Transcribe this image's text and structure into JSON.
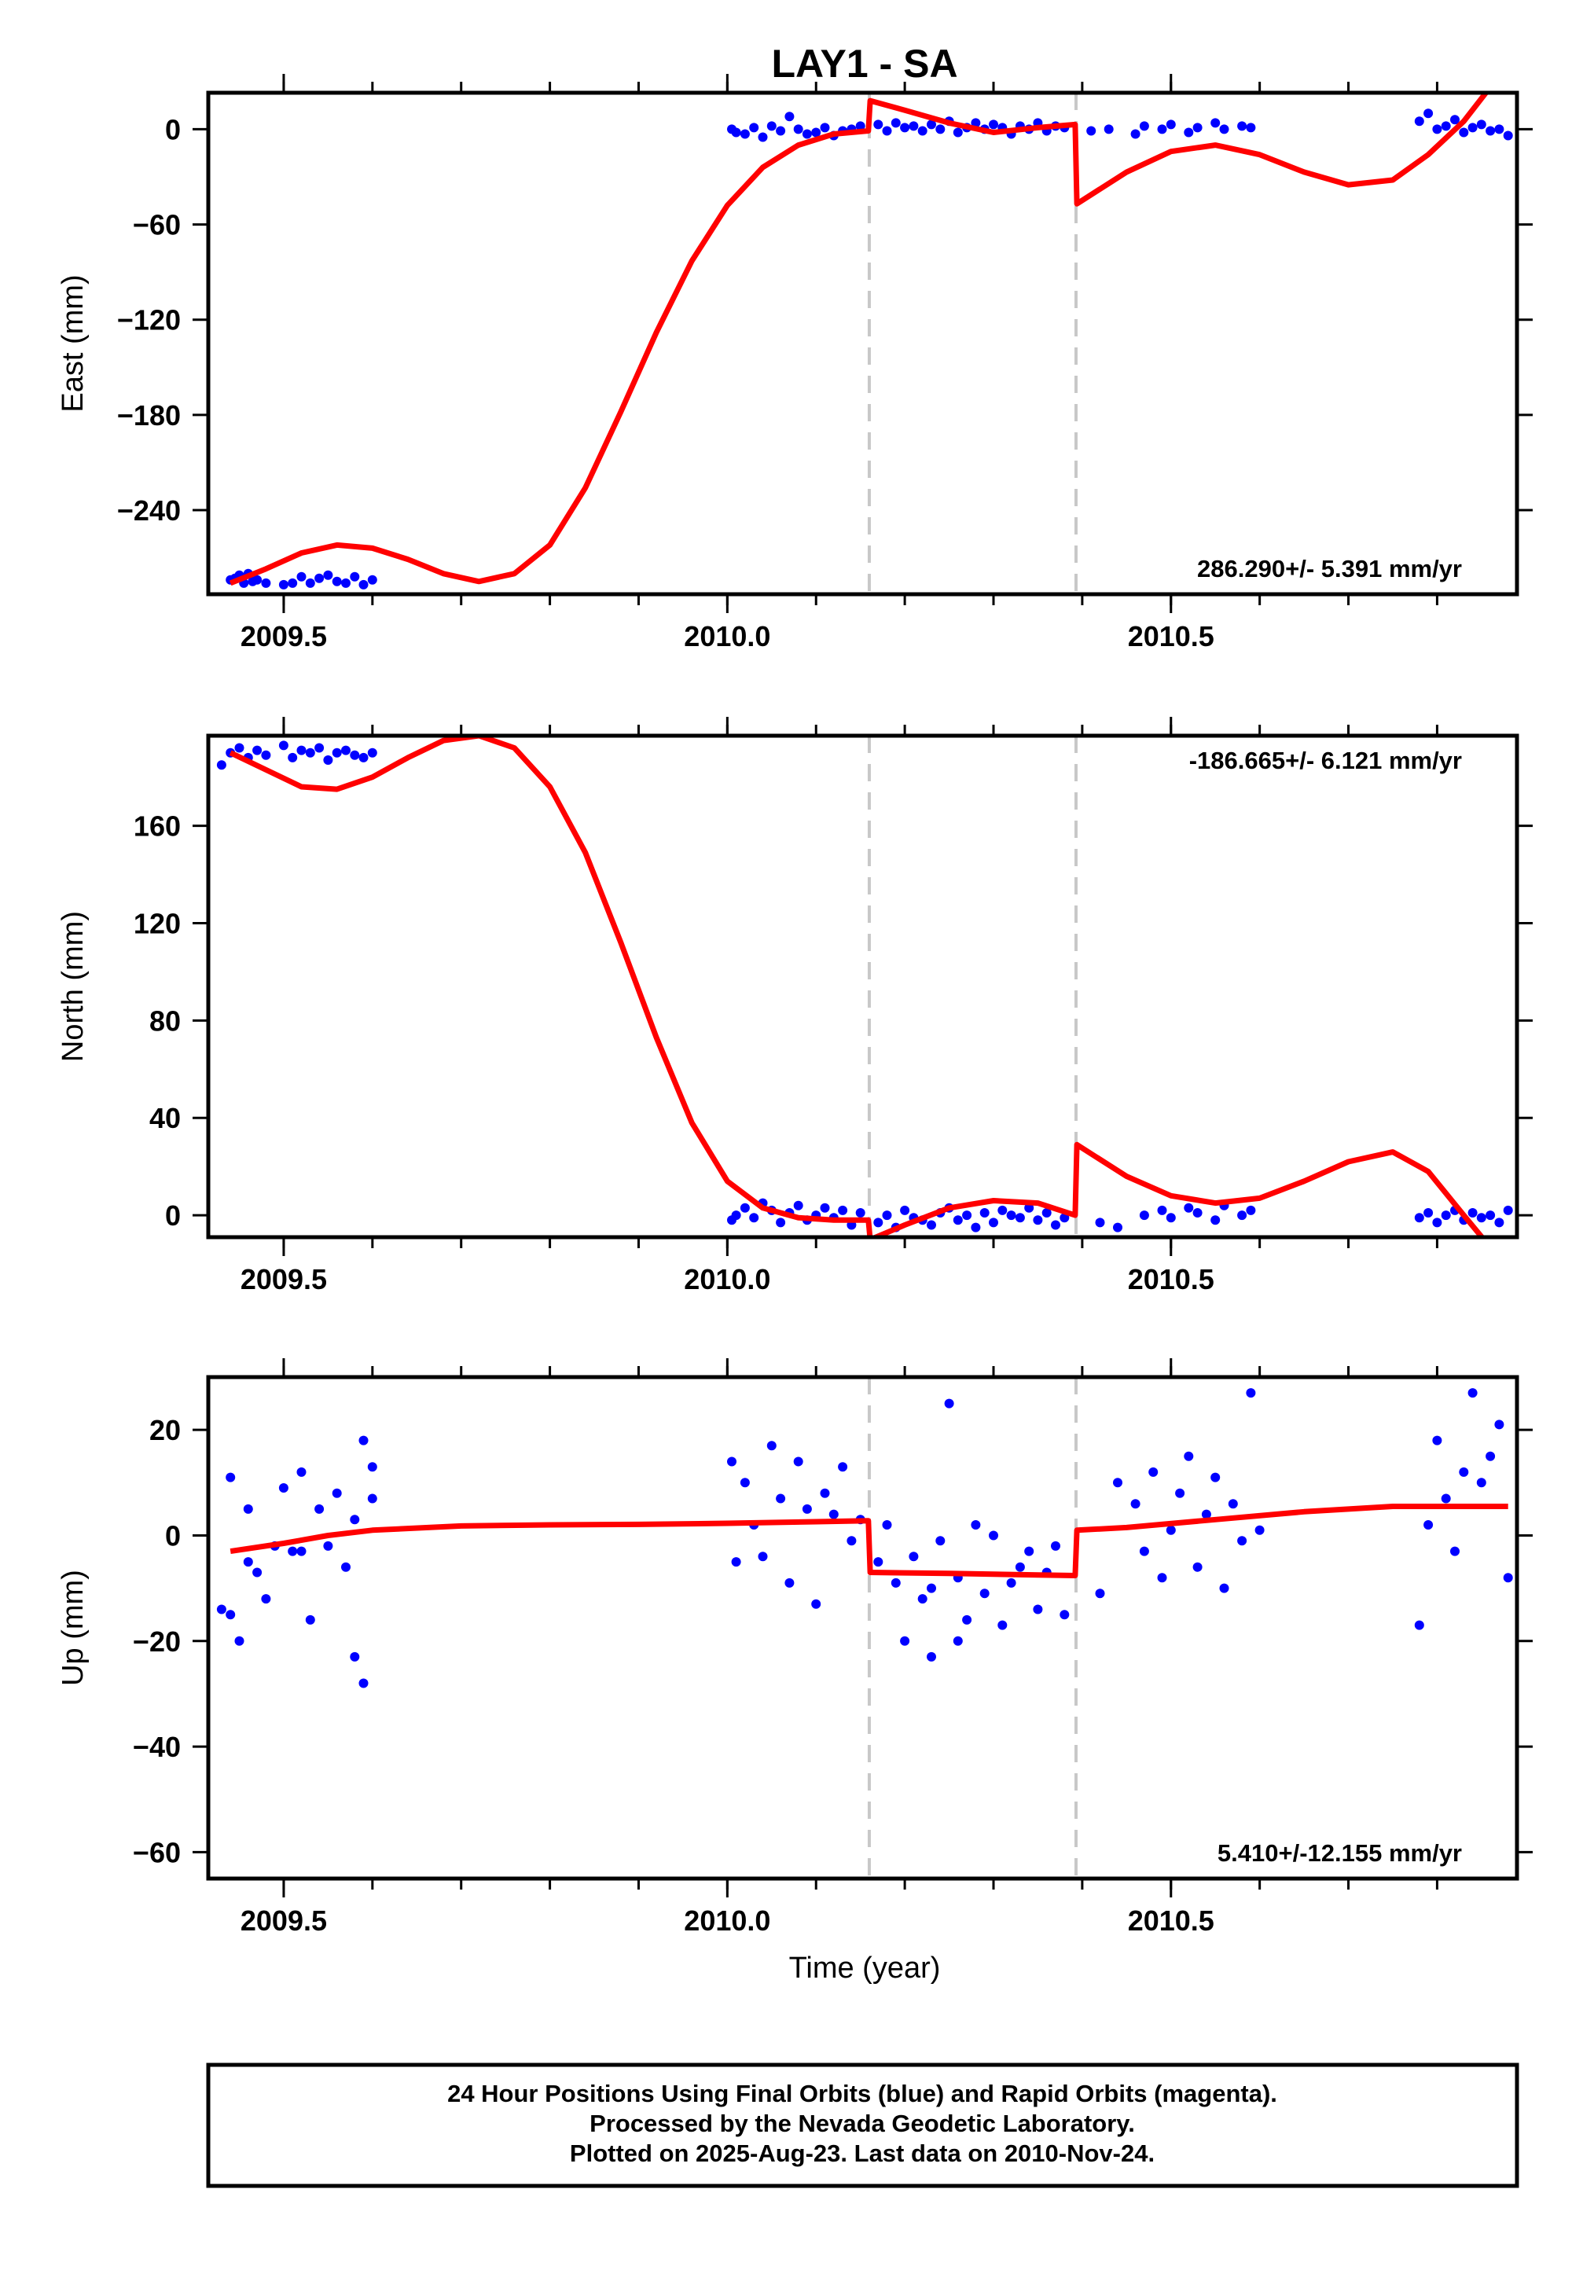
{
  "title": "LAY1 - SA",
  "xlabel": "Time (year)",
  "footer": {
    "line1": "24 Hour Positions Using Final Orbits (blue) and Rapid Orbits (magenta).",
    "line2": "Processed by the Nevada Geodetic Laboratory.",
    "line3": "Plotted on 2025-Aug-23. Last data on 2010-Nov-24."
  },
  "colors": {
    "points": "#0000ff",
    "fit": "#ff0000",
    "steps": "#c8c8c8",
    "frame": "#000000"
  },
  "chart_data": [
    {
      "type": "scatter",
      "component": "east",
      "ylabel": "East (mm)",
      "rate_text": "286.290+/- 5.391 mm/yr",
      "rate_position": "bottom-right",
      "xlim": [
        2009.415,
        2010.89
      ],
      "ylim": [
        -293,
        23
      ],
      "xticks": [
        2009.5,
        2010.0,
        2010.5
      ],
      "xtick_labels": [
        "2009.5",
        "2010.0",
        "2010.5"
      ],
      "yticks": [
        0,
        -60,
        -120,
        -180,
        -240
      ],
      "ytick_labels": [
        "0",
        "−60",
        "−120",
        "−180",
        "−240"
      ],
      "step_lines_x": [
        2010.16,
        2010.393
      ],
      "fit_series": {
        "name": "",
        "x": [
          2009.44,
          2009.48,
          2009.52,
          2009.56,
          2009.6,
          2009.64,
          2009.68,
          2009.72,
          2009.76,
          2009.8,
          2009.84,
          2009.88,
          2009.92,
          2009.96,
          2010.0,
          2010.04,
          2010.08,
          2010.12,
          2010.159,
          2010.161,
          2010.2,
          2010.25,
          2010.3,
          2010.35,
          2010.392,
          2010.394,
          2010.45,
          2010.5,
          2010.55,
          2010.6,
          2010.65,
          2010.7,
          2010.75,
          2010.79,
          2010.83,
          2010.855
        ],
        "y": [
          -286,
          -277,
          -267,
          -262,
          -264,
          -271,
          -280,
          -285,
          -280,
          -262,
          -226,
          -178,
          -128,
          -83,
          -48,
          -24,
          -10,
          -3,
          -1,
          18,
          12,
          4,
          -2,
          1,
          3,
          -47,
          -27,
          -14,
          -10,
          -16,
          -27,
          -35,
          -32,
          -16,
          5,
          23
        ]
      },
      "points": {
        "x": [
          2009.44,
          2009.445,
          2009.45,
          2009.455,
          2009.46,
          2009.465,
          2009.47,
          2009.48,
          2009.5,
          2009.51,
          2009.52,
          2009.53,
          2009.54,
          2009.55,
          2009.56,
          2009.57,
          2009.58,
          2009.59,
          2009.6,
          2010.005,
          2010.01,
          2010.02,
          2010.03,
          2010.04,
          2010.05,
          2010.06,
          2010.07,
          2010.08,
          2010.09,
          2010.1,
          2010.11,
          2010.12,
          2010.13,
          2010.14,
          2010.15,
          2010.17,
          2010.18,
          2010.19,
          2010.2,
          2010.21,
          2010.22,
          2010.23,
          2010.24,
          2010.25,
          2010.26,
          2010.27,
          2010.28,
          2010.29,
          2010.3,
          2010.31,
          2010.32,
          2010.33,
          2010.34,
          2010.35,
          2010.36,
          2010.37,
          2010.38,
          2010.41,
          2010.43,
          2010.46,
          2010.47,
          2010.49,
          2010.5,
          2010.52,
          2010.53,
          2010.55,
          2010.56,
          2010.58,
          2010.59,
          2010.78,
          2010.79,
          2010.8,
          2010.81,
          2010.82,
          2010.83,
          2010.84,
          2010.85,
          2010.86,
          2010.87,
          2010.88
        ],
        "y": [
          -284,
          -283,
          -281,
          -286,
          -280,
          -285,
          -284,
          -286,
          -287,
          -286,
          -282,
          -286,
          -283,
          -281,
          -285,
          -286,
          -282,
          -287,
          -284,
          0,
          -2,
          -3,
          1,
          -5,
          2,
          -1,
          8,
          0,
          -3,
          -2,
          1,
          -4,
          -1,
          0,
          2,
          3,
          -1,
          4,
          1,
          2,
          -1,
          3,
          0,
          5,
          -2,
          1,
          4,
          0,
          3,
          1,
          -3,
          2,
          0,
          4,
          -1,
          2,
          1,
          -1,
          0,
          -3,
          2,
          0,
          3,
          -2,
          1,
          4,
          0,
          2,
          1,
          5,
          10,
          0,
          2,
          6,
          -2,
          1,
          3,
          -1,
          0,
          -4
        ]
      }
    },
    {
      "type": "scatter",
      "component": "north",
      "ylabel": "North (mm)",
      "rate_text": "-186.665+/- 6.121 mm/yr",
      "rate_position": "top-right",
      "xlim": [
        2009.415,
        2010.89
      ],
      "ylim": [
        -9,
        197
      ],
      "xticks": [
        2009.5,
        2010.0,
        2010.5
      ],
      "xtick_labels": [
        "2009.5",
        "2010.0",
        "2010.5"
      ],
      "yticks": [
        0,
        40,
        80,
        120,
        160
      ],
      "ytick_labels": [
        "0",
        "40",
        "80",
        "120",
        "160"
      ],
      "step_lines_x": [
        2010.16,
        2010.393
      ],
      "fit_series": {
        "name": "",
        "x": [
          2009.44,
          2009.48,
          2009.52,
          2009.56,
          2009.6,
          2009.64,
          2009.68,
          2009.72,
          2009.76,
          2009.8,
          2009.84,
          2009.88,
          2009.92,
          2009.96,
          2010.0,
          2010.04,
          2010.08,
          2010.12,
          2010.159,
          2010.161,
          2010.2,
          2010.25,
          2010.3,
          2010.35,
          2010.392,
          2010.394,
          2010.45,
          2010.5,
          2010.55,
          2010.6,
          2010.65,
          2010.7,
          2010.75,
          2010.79,
          2010.83,
          2010.855
        ],
        "y": [
          190,
          183,
          176,
          175,
          180,
          188,
          195,
          197,
          192,
          176,
          149,
          112,
          73,
          38,
          14,
          3,
          -1,
          -2,
          -2,
          -10,
          -4,
          3,
          6,
          5,
          0,
          29,
          16,
          8,
          5,
          7,
          14,
          22,
          26,
          18,
          0,
          -11
        ]
      },
      "points": {
        "x": [
          2009.43,
          2009.44,
          2009.45,
          2009.46,
          2009.47,
          2009.48,
          2009.5,
          2009.51,
          2009.52,
          2009.53,
          2009.54,
          2009.55,
          2009.56,
          2009.57,
          2009.58,
          2009.59,
          2009.6,
          2010.005,
          2010.01,
          2010.02,
          2010.03,
          2010.04,
          2010.05,
          2010.06,
          2010.07,
          2010.08,
          2010.09,
          2010.1,
          2010.11,
          2010.12,
          2010.13,
          2010.14,
          2010.15,
          2010.17,
          2010.18,
          2010.19,
          2010.2,
          2010.21,
          2010.22,
          2010.23,
          2010.24,
          2010.25,
          2010.26,
          2010.27,
          2010.28,
          2010.29,
          2010.3,
          2010.31,
          2010.32,
          2010.33,
          2010.34,
          2010.35,
          2010.36,
          2010.37,
          2010.38,
          2010.42,
          2010.44,
          2010.47,
          2010.49,
          2010.5,
          2010.52,
          2010.53,
          2010.55,
          2010.56,
          2010.58,
          2010.59,
          2010.78,
          2010.79,
          2010.8,
          2010.81,
          2010.82,
          2010.83,
          2010.84,
          2010.85,
          2010.86,
          2010.87,
          2010.88
        ],
        "y": [
          185,
          190,
          192,
          188,
          191,
          189,
          193,
          188,
          191,
          190,
          192,
          187,
          190,
          191,
          189,
          188,
          190,
          -2,
          0,
          3,
          -1,
          5,
          2,
          -3,
          1,
          4,
          -2,
          0,
          3,
          -1,
          2,
          -4,
          1,
          -3,
          0,
          -5,
          2,
          -1,
          -2,
          -4,
          1,
          3,
          -2,
          0,
          -5,
          1,
          -3,
          2,
          0,
          -1,
          3,
          -2,
          1,
          -4,
          -1,
          -3,
          -5,
          0,
          2,
          -1,
          3,
          1,
          -2,
          4,
          0,
          2,
          -1,
          1,
          -3,
          0,
          2,
          -2,
          1,
          -1,
          0,
          -3,
          2
        ]
      }
    },
    {
      "type": "scatter",
      "component": "up",
      "ylabel": "Up (mm)",
      "rate_text": "5.410+/-12.155 mm/yr",
      "rate_position": "bottom-right",
      "xlim": [
        2009.415,
        2010.89
      ],
      "ylim": [
        -65,
        30
      ],
      "xticks": [
        2009.5,
        2010.0,
        2010.5
      ],
      "xtick_labels": [
        "2009.5",
        "2010.0",
        "2010.5"
      ],
      "yticks": [
        20,
        0,
        -20,
        -40,
        -60
      ],
      "ytick_labels": [
        "20",
        "0",
        "−20",
        "−40",
        "−60"
      ],
      "step_lines_x": [
        2010.16,
        2010.393
      ],
      "fit_series": {
        "name": "",
        "x": [
          2009.44,
          2009.5,
          2009.55,
          2009.6,
          2009.7,
          2009.8,
          2009.9,
          2010.0,
          2010.1,
          2010.159,
          2010.161,
          2010.25,
          2010.35,
          2010.392,
          2010.394,
          2010.45,
          2010.55,
          2010.65,
          2010.75,
          2010.8,
          2010.88
        ],
        "y": [
          -3,
          -1.5,
          0,
          1,
          1.8,
          2,
          2.1,
          2.3,
          2.6,
          2.8,
          -7,
          -7.2,
          -7.5,
          -7.6,
          1,
          1.5,
          3,
          4.5,
          5.5,
          5.5,
          5.5
        ]
      },
      "points": {
        "x": [
          2009.43,
          2009.44,
          2009.45,
          2009.46,
          2009.47,
          2009.48,
          2009.49,
          2009.5,
          2009.51,
          2009.52,
          2009.53,
          2009.54,
          2009.55,
          2009.56,
          2009.57,
          2009.58,
          2009.59,
          2009.6,
          2009.44,
          2009.46,
          2009.52,
          2009.58,
          2009.59,
          2009.6,
          2010.005,
          2010.01,
          2010.02,
          2010.03,
          2010.04,
          2010.05,
          2010.06,
          2010.07,
          2010.08,
          2010.09,
          2010.1,
          2010.11,
          2010.12,
          2010.13,
          2010.14,
          2010.15,
          2010.17,
          2010.18,
          2010.19,
          2010.2,
          2010.21,
          2010.22,
          2010.23,
          2010.24,
          2010.25,
          2010.26,
          2010.27,
          2010.28,
          2010.29,
          2010.3,
          2010.31,
          2010.32,
          2010.33,
          2010.34,
          2010.35,
          2010.36,
          2010.37,
          2010.38,
          2010.23,
          2010.26,
          2010.42,
          2010.44,
          2010.46,
          2010.47,
          2010.48,
          2010.49,
          2010.5,
          2010.51,
          2010.52,
          2010.53,
          2010.54,
          2010.55,
          2010.56,
          2010.57,
          2010.58,
          2010.59,
          2010.6,
          2010.78,
          2010.79,
          2010.8,
          2010.81,
          2010.82,
          2010.83,
          2010.84,
          2010.85,
          2010.86,
          2010.87,
          2010.88
        ],
        "y": [
          -14,
          11,
          -20,
          5,
          -7,
          -12,
          -2,
          9,
          -3,
          12,
          -16,
          5,
          -2,
          8,
          -6,
          -23,
          18,
          7,
          -15,
          -5,
          -3,
          3,
          -28,
          13,
          14,
          -5,
          10,
          2,
          -4,
          17,
          7,
          -9,
          14,
          5,
          -13,
          8,
          4,
          13,
          -1,
          3,
          -5,
          2,
          -9,
          -20,
          -4,
          -12,
          -23,
          -1,
          25,
          -8,
          -16,
          2,
          -11,
          0,
          -17,
          -9,
          -6,
          -3,
          -14,
          -7,
          -2,
          -15,
          -10,
          -20,
          -11,
          10,
          6,
          -3,
          12,
          -8,
          1,
          8,
          15,
          -6,
          4,
          11,
          -10,
          6,
          -1,
          27,
          1,
          -17,
          2,
          18,
          7,
          -3,
          12,
          27,
          10,
          15,
          21,
          -8
        ]
      }
    }
  ]
}
